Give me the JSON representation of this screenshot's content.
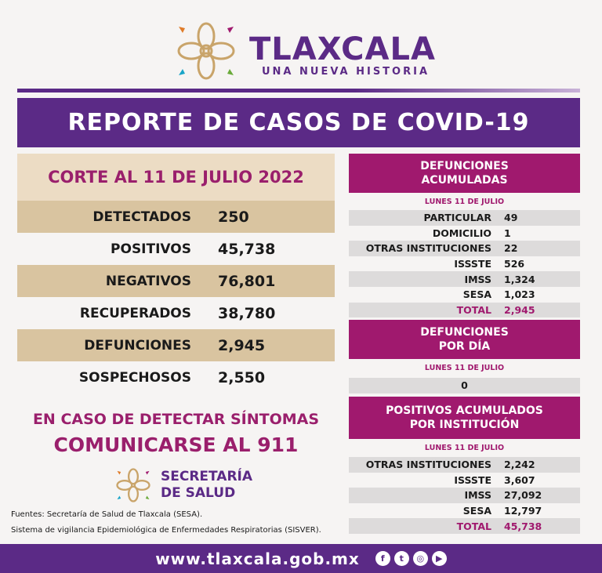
{
  "header": {
    "title": "TLAXCALA",
    "subtitle": "UNA NUEVA HISTORIA"
  },
  "banner": "REPORTE DE CASOS DE COVID-19",
  "summary": {
    "title": "CORTE AL 11 DE JULIO 2022",
    "rows": [
      {
        "label": "DETECTADOS",
        "value": "250"
      },
      {
        "label": "POSITIVOS",
        "value": "45,738"
      },
      {
        "label": "NEGATIVOS",
        "value": "76,801"
      },
      {
        "label": "RECUPERADOS",
        "value": "38,780"
      },
      {
        "label": "DEFUNCIONES",
        "value": "2,945"
      },
      {
        "label": "SOSPECHOSOS",
        "value": "2,550"
      }
    ]
  },
  "defunciones_acumuladas": {
    "title1": "DEFUNCIONES",
    "title2": "ACUMULADAS",
    "date": "LUNES 11 DE JULIO",
    "rows": [
      {
        "label": "PARTICULAR",
        "value": "49"
      },
      {
        "label": "DOMICILIO",
        "value": "1"
      },
      {
        "label": "OTRAS INSTITUCIONES",
        "value": "22"
      },
      {
        "label": "ISSSTE",
        "value": "526"
      },
      {
        "label": "IMSS",
        "value": "1,324"
      },
      {
        "label": "SESA",
        "value": "1,023"
      },
      {
        "label": "TOTAL",
        "value": "2,945"
      }
    ]
  },
  "defunciones_dia": {
    "title1": "DEFUNCIONES",
    "title2": "POR DÍA",
    "date": "LUNES 11 DE JULIO",
    "value": "0"
  },
  "positivos_institucion": {
    "title1": "POSITIVOS ACUMULADOS",
    "title2": "POR INSTITUCIÓN",
    "date": "LUNES 11 DE JULIO",
    "rows": [
      {
        "label": "OTRAS INSTITUCIONES",
        "value": "2,242"
      },
      {
        "label": "ISSSTE",
        "value": "3,607"
      },
      {
        "label": "IMSS",
        "value": "27,092"
      },
      {
        "label": "SESA",
        "value": "12,797"
      },
      {
        "label": "TOTAL",
        "value": "45,738"
      }
    ]
  },
  "cta": {
    "line1": "EN CASO DE DETECTAR SÍNTOMAS",
    "line2": "COMUNICARSE AL 911"
  },
  "secretaria": {
    "line1": "SECRETARÍA",
    "line2": "DE SALUD"
  },
  "sources": {
    "line1": "Fuentes:  Secretaría de Salud de Tlaxcala (SESA).",
    "line2": "Sistema de vigilancia Epidemiológica de Enfermedades Respiratorias (SISVER)."
  },
  "footer": {
    "url": "www.tlaxcala.gob.mx",
    "icons": [
      "facebook-icon",
      "twitter-icon",
      "instagram-icon",
      "youtube-icon"
    ]
  },
  "colors": {
    "purple": "#5b2a86",
    "magenta": "#a0196e",
    "tan": "#d9c4a0"
  }
}
